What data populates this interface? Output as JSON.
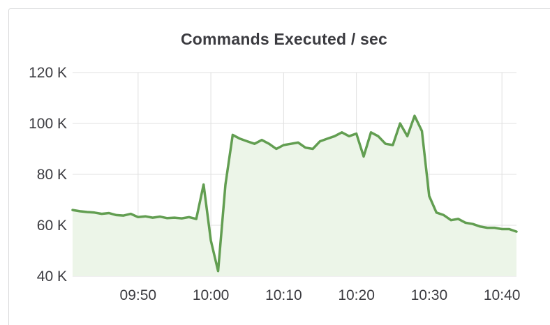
{
  "panel": {
    "title": "Commands Executed / sec"
  },
  "colors": {
    "line": "#629e51",
    "fill": "#ecf5e8",
    "grid": "#e0e0e0",
    "text": "#3b3b40"
  },
  "chart_data": {
    "type": "area",
    "title": "Commands Executed / sec",
    "xlabel": "",
    "ylabel": "",
    "ylim": [
      40000,
      120000
    ],
    "xlim": [
      "09:41",
      "10:42"
    ],
    "y_ticks": [
      40000,
      60000,
      80000,
      100000,
      120000
    ],
    "y_tick_labels": [
      "40 K",
      "60 K",
      "80 K",
      "100 K",
      "120 K"
    ],
    "x_ticks": [
      "09:50",
      "10:00",
      "10:10",
      "10:20",
      "10:30",
      "10:40"
    ],
    "x_tick_labels": [
      "09:50",
      "10:00",
      "10:10",
      "10:20",
      "10:30",
      "10:40"
    ],
    "grid": true,
    "legend": "none",
    "series": [
      {
        "x": [
          "09:41",
          "09:42",
          "09:43",
          "09:44",
          "09:45",
          "09:46",
          "09:47",
          "09:48",
          "09:49",
          "09:50",
          "09:51",
          "09:52",
          "09:53",
          "09:54",
          "09:55",
          "09:56",
          "09:57",
          "09:58",
          "09:59",
          "10:00",
          "10:01",
          "10:02",
          "10:03",
          "10:04",
          "10:05",
          "10:06",
          "10:07",
          "10:08",
          "10:09",
          "10:10",
          "10:11",
          "10:12",
          "10:13",
          "10:14",
          "10:15",
          "10:16",
          "10:17",
          "10:18",
          "10:19",
          "10:20",
          "10:21",
          "10:22",
          "10:23",
          "10:24",
          "10:25",
          "10:26",
          "10:27",
          "10:28",
          "10:29",
          "10:30",
          "10:31",
          "10:32",
          "10:33",
          "10:34",
          "10:35",
          "10:36",
          "10:37",
          "10:38",
          "10:39",
          "10:40",
          "10:41",
          "10:42"
        ],
        "values": [
          66000,
          65500,
          65200,
          65000,
          64500,
          64800,
          64000,
          63800,
          64500,
          63200,
          63500,
          63000,
          63400,
          62800,
          63000,
          62700,
          63200,
          62500,
          76000,
          54000,
          42000,
          76000,
          95500,
          94000,
          93000,
          92000,
          93500,
          92000,
          90000,
          91500,
          92000,
          92500,
          90500,
          90000,
          93000,
          94000,
          95000,
          96500,
          95000,
          96000,
          87000,
          96500,
          95000,
          92000,
          91500,
          100000,
          95000,
          103000,
          97000,
          71500,
          65000,
          64000,
          62000,
          62500,
          61000,
          60500,
          59500,
          59000,
          59000,
          58500,
          58500,
          57500
        ]
      }
    ]
  }
}
